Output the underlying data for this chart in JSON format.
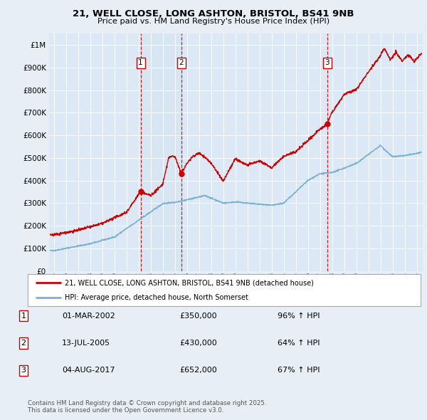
{
  "title": "21, WELL CLOSE, LONG ASHTON, BRISTOL, BS41 9NB",
  "subtitle": "Price paid vs. HM Land Registry's House Price Index (HPI)",
  "background_color": "#e8eef5",
  "plot_bg_color": "#dce8f5",
  "sale_dates_decimal": [
    2002.17,
    2005.53,
    2017.59
  ],
  "sale_prices": [
    350000,
    430000,
    652000
  ],
  "sale_labels": [
    "1",
    "2",
    "3"
  ],
  "sale_date_str": [
    "01-MAR-2002",
    "13-JUL-2005",
    "04-AUG-2017"
  ],
  "sale_price_str": [
    "£350,000",
    "£430,000",
    "£652,000"
  ],
  "sale_pct_str": [
    "96% ↑ HPI",
    "64% ↑ HPI",
    "67% ↑ HPI"
  ],
  "legend_line1": "21, WELL CLOSE, LONG ASHTON, BRISTOL, BS41 9NB (detached house)",
  "legend_line2": "HPI: Average price, detached house, North Somerset",
  "footer": "Contains HM Land Registry data © Crown copyright and database right 2025.\nThis data is licensed under the Open Government Licence v3.0.",
  "red_color": "#cc0000",
  "blue_color": "#7ab0d4",
  "ylim": [
    0,
    1050000
  ],
  "xlim_start": 1994.6,
  "xlim_end": 2025.5,
  "yticks": [
    0,
    100000,
    200000,
    300000,
    400000,
    500000,
    600000,
    700000,
    800000,
    900000,
    1000000
  ]
}
